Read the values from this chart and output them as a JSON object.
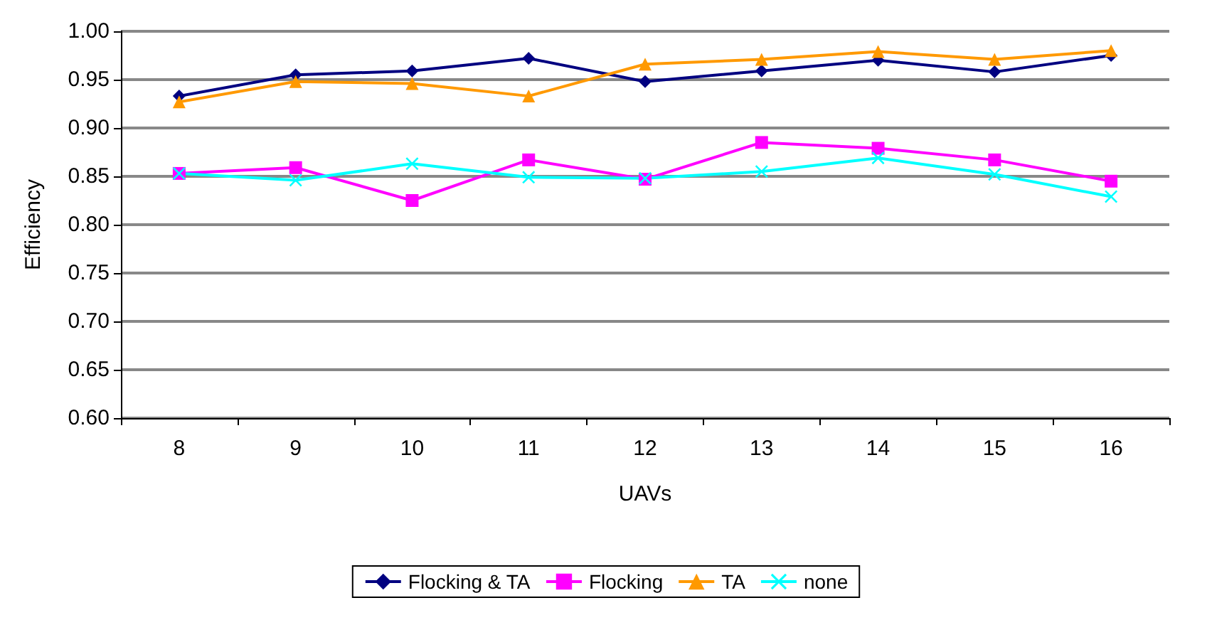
{
  "chart_data": {
    "type": "line",
    "xlabel": "UAVs",
    "ylabel": "Efficiency",
    "categories": [
      "8",
      "9",
      "10",
      "11",
      "12",
      "13",
      "14",
      "15",
      "16"
    ],
    "series": [
      {
        "name": "Flocking & TA",
        "color": "#000080",
        "marker": "diamond",
        "values": [
          0.933,
          0.955,
          0.959,
          0.972,
          0.948,
          0.959,
          0.97,
          0.958,
          0.975
        ]
      },
      {
        "name": "Flocking",
        "color": "#ff00ff",
        "marker": "square",
        "values": [
          0.853,
          0.859,
          0.825,
          0.867,
          0.847,
          0.885,
          0.879,
          0.867,
          0.845
        ]
      },
      {
        "name": "TA",
        "color": "#ff9900",
        "marker": "triangle",
        "values": [
          0.927,
          0.948,
          0.946,
          0.933,
          0.966,
          0.971,
          0.979,
          0.971,
          0.98
        ]
      },
      {
        "name": "none",
        "color": "#00ffff",
        "marker": "cross",
        "values": [
          0.853,
          0.846,
          0.863,
          0.849,
          0.848,
          0.855,
          0.869,
          0.852,
          0.829
        ]
      }
    ],
    "ylim": [
      0.6,
      1.0
    ],
    "yticks": [
      {
        "value": 0.6,
        "label": "0.60"
      },
      0.65,
      {
        "value": 0.7,
        "label": "0.70"
      },
      0.75,
      {
        "value": 0.8,
        "label": "0.80"
      },
      0.85,
      {
        "value": 0.9,
        "label": "0.90"
      },
      0.95,
      {
        "value": 1.0,
        "label": "1.00"
      }
    ],
    "grid": "y",
    "legend": "bottom",
    "line_style": "solid"
  }
}
